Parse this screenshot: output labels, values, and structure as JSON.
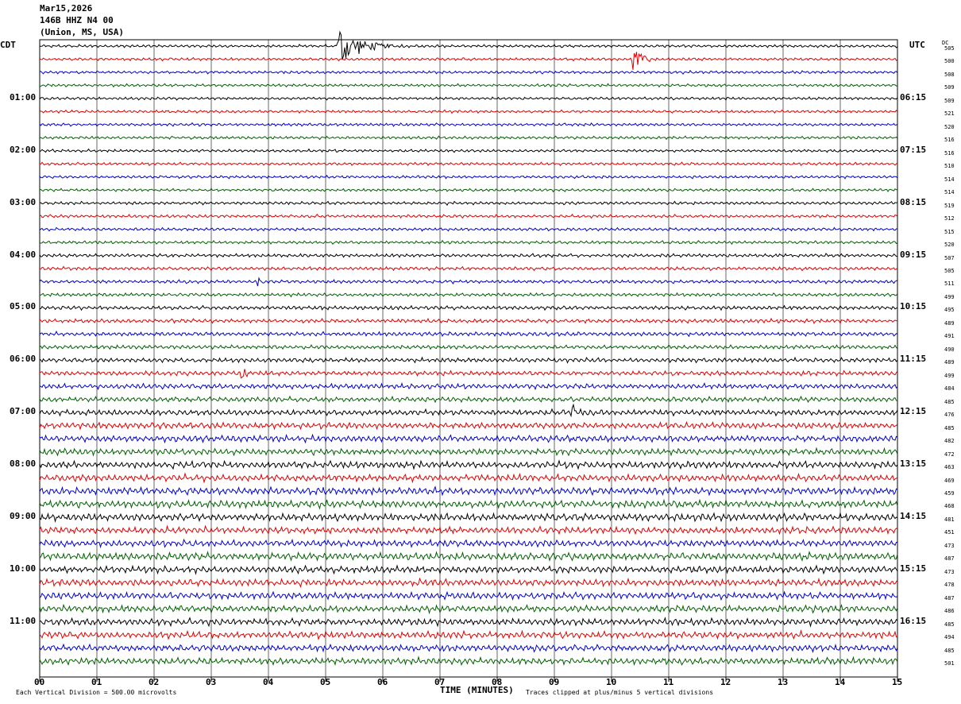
{
  "header": {
    "date": "Mar15,2026",
    "station": "146B HHZ N4 00",
    "location": "(Union, MS, USA)"
  },
  "labels": {
    "left_tz": "CDT",
    "right_tz": "UTC",
    "dc": "DC",
    "x_axis_title": "TIME (MINUTES)",
    "scale_note": "Each Vertical Division =  500.00 microvolts",
    "clip_note": "Traces clipped at plus/minus 5 vertical divisions"
  },
  "colors": {
    "trace_cycle": [
      "#000000",
      "#e00000",
      "#0000d0",
      "#006000"
    ],
    "grid": "#000000"
  },
  "chart_data": {
    "type": "line",
    "subtype": "helicorder",
    "xlim": [
      0,
      15
    ],
    "x_ticks": [
      "00",
      "01",
      "02",
      "03",
      "04",
      "05",
      "06",
      "07",
      "08",
      "09",
      "10",
      "11",
      "12",
      "13",
      "14",
      "15"
    ],
    "rows": 48,
    "minutes_per_row": 15,
    "left_time_labels": [
      "01:00",
      "02:00",
      "03:00",
      "04:00",
      "05:00",
      "06:00",
      "07:00",
      "08:00",
      "09:00",
      "10:00",
      "11:00"
    ],
    "right_time_labels": [
      "06:15",
      "07:15",
      "08:15",
      "09:15",
      "10:15",
      "11:15",
      "12:15",
      "13:15",
      "14:15",
      "15:15",
      "16:15"
    ],
    "dc_offsets": [
      "505",
      "500",
      "508",
      "509",
      "509",
      "521",
      "520",
      "516",
      "516",
      "510",
      "514",
      "514",
      "519",
      "512",
      "515",
      "520",
      "507",
      "505",
      "511",
      "499",
      "495",
      "489",
      "491",
      "490",
      "489",
      "499",
      "484",
      "485",
      "476",
      "485",
      "482",
      "472",
      "463",
      "469",
      "459",
      "468",
      "481",
      "451",
      "473",
      "487",
      "473",
      "478",
      "487",
      "486",
      "485",
      "494",
      "485",
      "501"
    ],
    "noise_amplitude_by_row": [
      0.25,
      0.25,
      0.25,
      0.25,
      0.25,
      0.25,
      0.25,
      0.25,
      0.25,
      0.25,
      0.25,
      0.25,
      0.27,
      0.27,
      0.27,
      0.27,
      0.3,
      0.3,
      0.3,
      0.3,
      0.35,
      0.35,
      0.35,
      0.35,
      0.4,
      0.4,
      0.45,
      0.45,
      0.5,
      0.55,
      0.55,
      0.55,
      0.6,
      0.6,
      0.65,
      0.65,
      0.65,
      0.6,
      0.6,
      0.65,
      0.6,
      0.6,
      0.6,
      0.6,
      0.6,
      0.6,
      0.6,
      0.6
    ],
    "events": [
      {
        "row": 0,
        "start_min": 5.2,
        "end_min": 6.5,
        "peak_divisions": 2.0
      },
      {
        "row": 1,
        "start_min": 10.35,
        "end_min": 10.9,
        "peak_divisions": 1.4
      },
      {
        "row": 18,
        "start_min": 3.8,
        "end_min": 4.0,
        "peak_divisions": 0.6
      },
      {
        "row": 25,
        "start_min": 3.5,
        "end_min": 3.9,
        "peak_divisions": 0.5
      },
      {
        "row": 28,
        "start_min": 9.3,
        "end_min": 9.9,
        "peak_divisions": 0.7
      }
    ]
  }
}
